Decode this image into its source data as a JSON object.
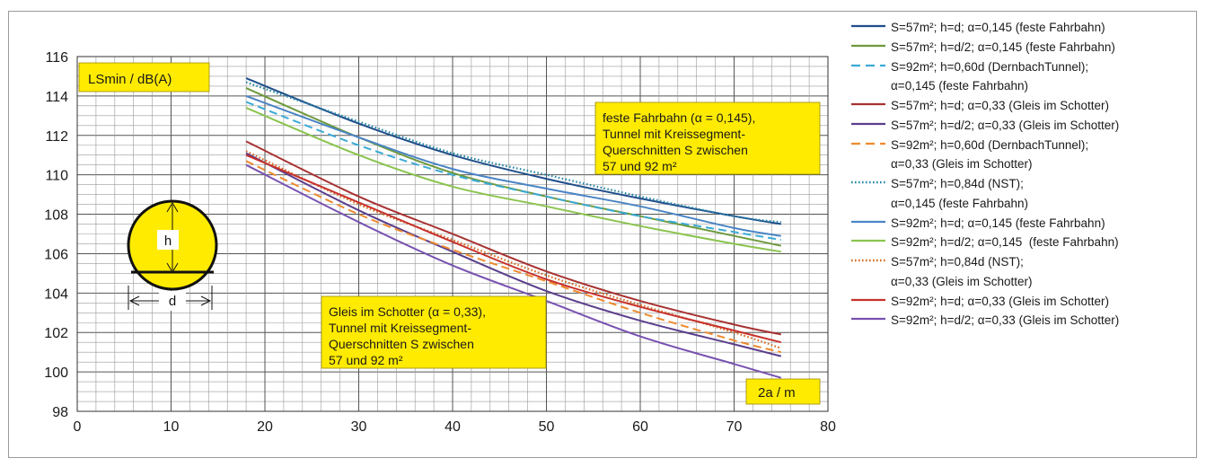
{
  "chart_data": {
    "type": "line",
    "title": "",
    "ylabel": "LSmin / dB(A)",
    "xlabel": "2a / m",
    "xlim": [
      0,
      80
    ],
    "ylim": [
      98,
      116
    ],
    "x_ticks": [
      "0",
      "10",
      "20",
      "30",
      "40",
      "50",
      "60",
      "70",
      "80"
    ],
    "y_ticks": [
      "98",
      "100",
      "102",
      "104",
      "106",
      "108",
      "110",
      "112",
      "114",
      "116"
    ],
    "grid": "major and minor",
    "legend_position": "right",
    "annotations": [
      "feste Fahrbahn (α = 0,145), Tunnel mit Kreissegment-Querschnitten S zwischen 57 und 92 m²",
      "Gleis im Schotter (α = 0,33), Tunnel mit Kreissegment-Querschnitten S zwischen 57 und 92 m²"
    ],
    "inset_labels": [
      "h",
      "d"
    ],
    "x": [
      18,
      30,
      40,
      50,
      60,
      70,
      75
    ],
    "series": [
      {
        "name": "S=57m²; h=d; α=0,145 (feste Fahrbahn)",
        "color": "#1f4e8a",
        "dash": "solid",
        "values": [
          114.9,
          112.6,
          111.0,
          109.8,
          108.8,
          107.9,
          107.5
        ]
      },
      {
        "name": "S=57m²; h=d/2; α=0,145 (feste Fahrbahn)",
        "color": "#6e9a3c",
        "dash": "solid",
        "values": [
          114.4,
          111.9,
          110.1,
          108.9,
          107.9,
          106.9,
          106.4
        ]
      },
      {
        "name": "S=92m²; h=0,60d (DernbachTunnel); α=0,145 (feste Fahrbahn)",
        "color": "#3aaad6",
        "dash": "dashed",
        "values": [
          113.7,
          111.5,
          110.0,
          108.9,
          107.9,
          107.1,
          106.7
        ]
      },
      {
        "name": "S=57m²; h=d; α=0,33 (Gleis im Schotter)",
        "color": "#a83232",
        "dash": "solid",
        "values": [
          111.7,
          108.9,
          107.0,
          105.1,
          103.6,
          102.4,
          101.9
        ]
      },
      {
        "name": "S=57m²; h=d/2; α=0,33 (Gleis im Schotter)",
        "color": "#5b3f8c",
        "dash": "solid",
        "values": [
          111.1,
          108.2,
          106.1,
          104.1,
          102.6,
          101.4,
          100.8
        ]
      },
      {
        "name": "S=92m²; h=0,60d (DernbachTunnel); α=0,33 (Gleis im Schotter)",
        "color": "#ee8a2e",
        "dash": "dashed",
        "values": [
          110.7,
          108.0,
          106.2,
          104.6,
          103.0,
          101.6,
          101.0
        ]
      },
      {
        "name": "S=57m²; h=0,84d (NST); α=0,145 (feste Fahrbahn)",
        "color": "#2787a8",
        "dash": "dotted",
        "values": [
          114.7,
          112.7,
          111.1,
          110.0,
          108.9,
          107.9,
          107.6
        ]
      },
      {
        "name": "S=92m²; h=d; α=0,145 (feste Fahrbahn)",
        "color": "#4a84c4",
        "dash": "solid",
        "values": [
          114.0,
          111.9,
          110.3,
          109.3,
          108.4,
          107.3,
          106.9
        ]
      },
      {
        "name": "S=92m²; h=d/2; α=0,145  (feste Fahrbahn)",
        "color": "#8ac44e",
        "dash": "solid",
        "values": [
          113.4,
          111.0,
          109.4,
          108.4,
          107.4,
          106.5,
          106.1
        ]
      },
      {
        "name": "S=57m²; h=0,84d (NST); α=0,33 (Gleis im Schotter)",
        "color": "#d46a22",
        "dash": "dotted",
        "values": [
          111.2,
          108.5,
          106.7,
          104.9,
          103.4,
          102.0,
          101.2
        ]
      },
      {
        "name": "S=92m²; h=d; α=0,33 (Gleis im Schotter)",
        "color": "#c7312b",
        "dash": "solid",
        "values": [
          111.0,
          108.6,
          106.6,
          104.7,
          103.3,
          102.1,
          101.5
        ]
      },
      {
        "name": "S=92m²; h=d/2; α=0,33 (Gleis im Schotter)",
        "color": "#7852b0",
        "dash": "solid",
        "values": [
          110.5,
          107.6,
          105.4,
          103.6,
          101.8,
          100.4,
          99.7
        ]
      }
    ]
  }
}
